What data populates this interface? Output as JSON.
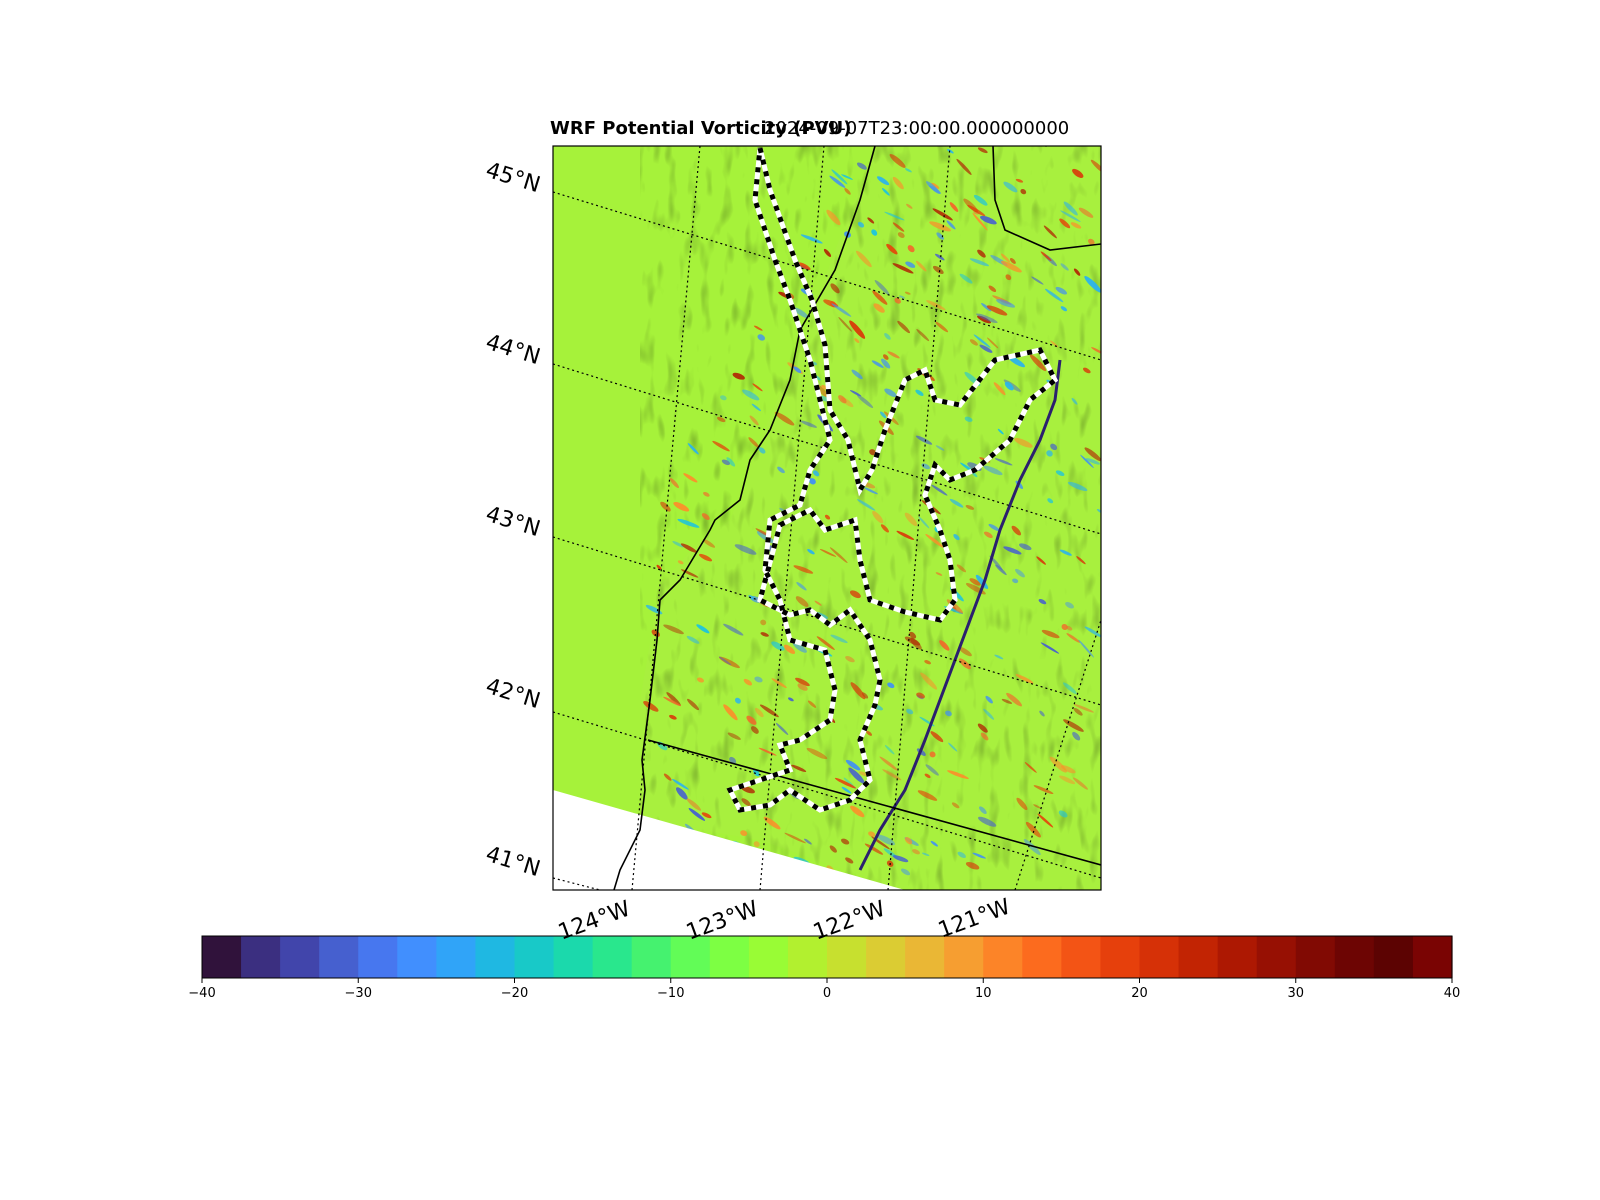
{
  "title": "WRF Potential Vorticity (PVU)",
  "subtitle": "2024-09-07T23:00:00.000000000",
  "map": {
    "region": "Northern California / Southern Oregon",
    "lat_labels": [
      "45°N",
      "44°N",
      "43°N",
      "42°N",
      "41°N"
    ],
    "lon_labels": [
      "124°W",
      "123°W",
      "122°W",
      "121°W"
    ],
    "fill_color_ocean": "#a6f23a",
    "outside_domain_color": "#ffffff",
    "fire_perimeter_style": "white-black dashed"
  },
  "colorbar": {
    "min": -40,
    "max": 40,
    "tick_labels": [
      "−40",
      "−30",
      "−20",
      "−10",
      "0",
      "10",
      "20",
      "30",
      "40"
    ],
    "colormap": "turbo"
  },
  "chart_data": {
    "type": "heatmap",
    "title": "WRF Potential Vorticity (PVU)",
    "subtitle": "2024-09-07T23:00:00.000000000",
    "value_range": [
      -40,
      40
    ],
    "lat_range": [
      41,
      45
    ],
    "lon_range": [
      -124,
      -121
    ]
  }
}
